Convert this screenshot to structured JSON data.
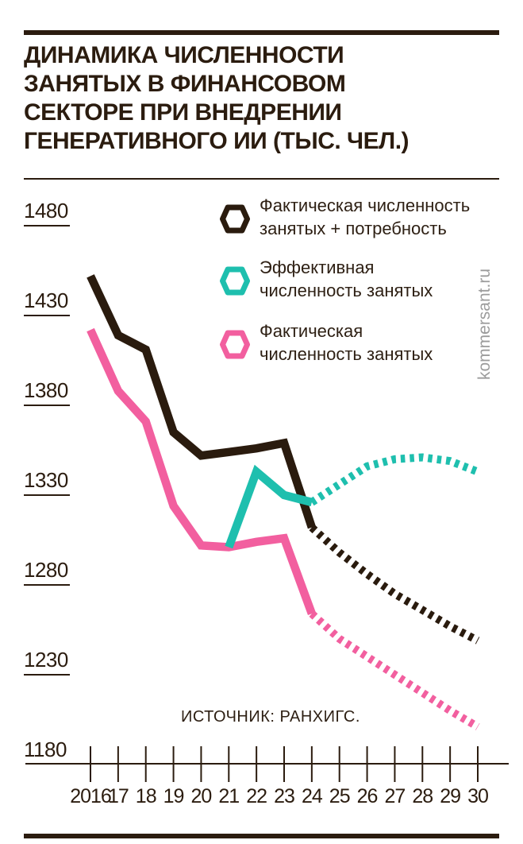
{
  "header": {
    "title_lines": [
      "ДИНАМИКА ЧИСЛЕННОСТИ",
      "ЗАНЯТЫХ В ФИНАНСОВОМ",
      "СЕКТОРЕ ПРИ ВНЕДРЕНИИ",
      "ГЕНЕРАТИВНОГО ИИ (ТЫС. ЧЕЛ.)"
    ]
  },
  "legend": {
    "items": [
      {
        "label_lines": [
          "Фактическая численность",
          "занятых + потребность"
        ],
        "color": "#2a1b0e"
      },
      {
        "label_lines": [
          "Эффективная",
          "численность занятых"
        ],
        "color": "#1ebfae"
      },
      {
        "label_lines": [
          "Фактическая",
          "численность занятых"
        ],
        "color": "#f25f9f"
      }
    ]
  },
  "watermark": {
    "text": "kommersant.ru"
  },
  "source": {
    "text": "ИСТОЧНИК: РАНХИГС."
  },
  "chart_data": {
    "type": "line",
    "title": "Динамика численности занятых в финансовом секторе при внедрении генеративного ИИ (тыс. чел.)",
    "units": "тыс. чел.",
    "x": [
      2016,
      2017,
      2018,
      2019,
      2020,
      2021,
      2022,
      2023,
      2024,
      2025,
      2026,
      2027,
      2028,
      2029,
      2030
    ],
    "x_tick_labels": [
      "2016",
      "17",
      "18",
      "19",
      "20",
      "21",
      "22",
      "23",
      "24",
      "25",
      "26",
      "27",
      "28",
      "29",
      "30"
    ],
    "y_ticks": [
      1480,
      1430,
      1380,
      1330,
      1280,
      1230,
      1180
    ],
    "ylim": [
      1180,
      1500
    ],
    "grid": false,
    "legend_position": "top-right",
    "forecast_from": 2024,
    "forecast_style": "dashed",
    "series": [
      {
        "name": "Фактическая численность занятых + потребность",
        "color": "#2a1b0e",
        "x": [
          2016,
          2017,
          2018,
          2019,
          2020,
          2021,
          2022,
          2023,
          2024,
          2025,
          2026,
          2027,
          2028,
          2029,
          2030
        ],
        "values": [
          1452,
          1419,
          1411,
          1365,
          1352,
          1354,
          1356,
          1359,
          1312,
          1298,
          1286,
          1275,
          1266,
          1257,
          1249
        ]
      },
      {
        "name": "Эффективная численность занятых",
        "color": "#1ebfae",
        "x": [
          2021,
          2022,
          2023,
          2024,
          2025,
          2026,
          2027,
          2028,
          2029,
          2030
        ],
        "values": [
          1301,
          1343,
          1330,
          1326,
          1336,
          1346,
          1350,
          1351,
          1349,
          1343
        ]
      },
      {
        "name": "Фактическая численность занятых",
        "color": "#f25f9f",
        "x": [
          2016,
          2017,
          2018,
          2019,
          2020,
          2021,
          2022,
          2023,
          2024,
          2025,
          2026,
          2027,
          2028,
          2029,
          2030
        ],
        "values": [
          1422,
          1388,
          1371,
          1324,
          1302,
          1301,
          1304,
          1306,
          1264,
          1250,
          1240,
          1230,
          1220,
          1210,
          1201
        ]
      }
    ]
  }
}
